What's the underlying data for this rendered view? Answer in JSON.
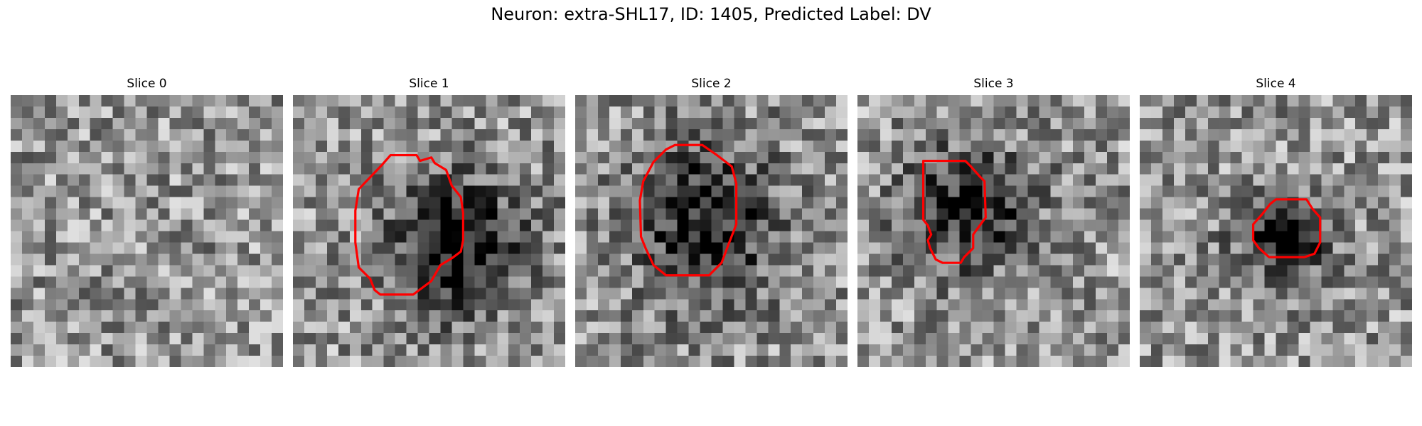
{
  "figure": {
    "title": "Neuron: extra-SHL17, ID: 1405, Predicted Label: DV"
  },
  "panels": [
    {
      "title": "Slice 0",
      "seed": 11,
      "blob": null,
      "contour": null
    },
    {
      "title": "Slice 1",
      "seed": 23,
      "blob": {
        "cx": 14.5,
        "cy": 13.2,
        "rx": 5.6,
        "ry": 5.8,
        "depth": 130
      },
      "contour": [
        [
          7.9,
          6.1
        ],
        [
          5.8,
          8.3
        ],
        [
          5.5,
          10.2
        ],
        [
          5.5,
          13
        ],
        [
          5.8,
          15.2
        ],
        [
          6.8,
          16.2
        ],
        [
          7.2,
          17.2
        ],
        [
          7.7,
          17.6
        ],
        [
          10.6,
          17.6
        ],
        [
          12.2,
          16.4
        ],
        [
          13,
          15
        ],
        [
          14,
          14.4
        ],
        [
          14.8,
          13.8
        ],
        [
          15,
          12.8
        ],
        [
          15,
          10.4
        ],
        [
          14.8,
          9
        ],
        [
          14,
          8
        ],
        [
          13.5,
          6.6
        ],
        [
          12.5,
          6
        ],
        [
          12.2,
          5.5
        ],
        [
          11.2,
          5.8
        ],
        [
          10.9,
          5.3
        ],
        [
          8.6,
          5.3
        ]
      ]
    },
    {
      "title": "Slice 2",
      "seed": 37,
      "blob": {
        "cx": 11.5,
        "cy": 11.2,
        "rx": 6.0,
        "ry": 6.6,
        "depth": 125
      },
      "contour": [
        [
          11.2,
          4.4
        ],
        [
          12.5,
          5.3
        ],
        [
          13.8,
          6.3
        ],
        [
          14.2,
          7.8
        ],
        [
          14.2,
          11.4
        ],
        [
          13.5,
          13.2
        ],
        [
          12.9,
          14.8
        ],
        [
          11.8,
          15.9
        ],
        [
          8,
          15.9
        ],
        [
          6.9,
          15
        ],
        [
          6.2,
          13.5
        ],
        [
          5.8,
          12.5
        ],
        [
          5.7,
          9.3
        ],
        [
          6,
          7.6
        ],
        [
          6.9,
          5.9
        ],
        [
          8,
          4.8
        ],
        [
          8.8,
          4.4
        ]
      ]
    },
    {
      "title": "Slice 3",
      "seed": 51,
      "blob": {
        "cx": 9.8,
        "cy": 10.0,
        "rx": 5.5,
        "ry": 5.3,
        "depth": 115
      },
      "contour": [
        [
          9.5,
          5.8
        ],
        [
          10,
          6.3
        ],
        [
          10.8,
          7.2
        ],
        [
          11.2,
          7.6
        ],
        [
          11.3,
          10.8
        ],
        [
          11,
          11.2
        ],
        [
          10.2,
          12.3
        ],
        [
          10.2,
          13.5
        ],
        [
          9.4,
          14.3
        ],
        [
          9.1,
          14.8
        ],
        [
          7.5,
          14.8
        ],
        [
          6.9,
          14.5
        ],
        [
          6.4,
          13.5
        ],
        [
          6.2,
          12.8
        ],
        [
          6.5,
          12.3
        ],
        [
          6.2,
          11.5
        ],
        [
          5.8,
          11
        ],
        [
          5.8,
          5.8
        ]
      ]
    },
    {
      "title": "Slice 4",
      "seed": 67,
      "blob": {
        "cx": 12.6,
        "cy": 12.3,
        "rx": 3.7,
        "ry": 3.5,
        "depth": 140
      },
      "contour": [
        [
          14.7,
          9.2
        ],
        [
          15.2,
          10
        ],
        [
          15.9,
          10.8
        ],
        [
          15.9,
          13
        ],
        [
          15.4,
          14
        ],
        [
          14.5,
          14.3
        ],
        [
          11.4,
          14.3
        ],
        [
          10.5,
          13.5
        ],
        [
          10,
          12.8
        ],
        [
          10,
          11.4
        ],
        [
          10.8,
          10.5
        ],
        [
          11.5,
          9.6
        ],
        [
          12,
          9.2
        ]
      ]
    }
  ]
}
